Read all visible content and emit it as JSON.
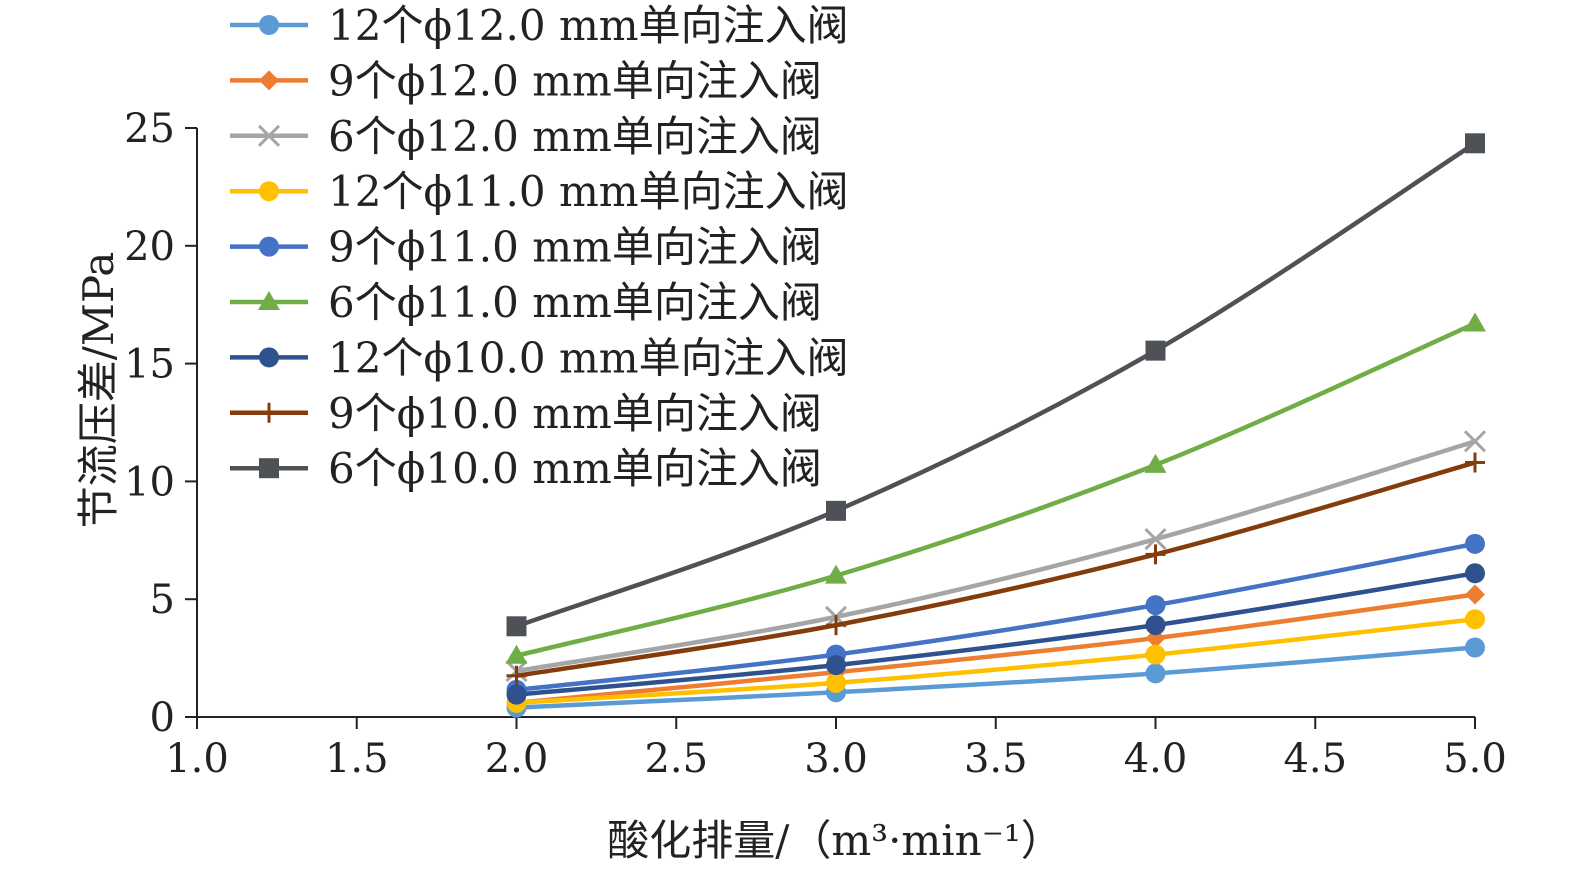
{
  "chart_data": {
    "type": "line",
    "xlabel": "酸化排量/（m³·min⁻¹）",
    "ylabel": "节流压差/MPa",
    "xlim": [
      1.0,
      5.0
    ],
    "ylim": [
      0,
      25
    ],
    "x_ticks": [
      "1.0",
      "1.5",
      "2.0",
      "2.5",
      "3.0",
      "3.5",
      "4.0",
      "4.5",
      "5.0"
    ],
    "y_ticks": [
      "0",
      "5",
      "10",
      "15",
      "20",
      "25"
    ],
    "grid": false,
    "legend_position": "top-left",
    "x": [
      2.0,
      3.0,
      4.0,
      5.0
    ],
    "series": [
      {
        "name": "12个ϕ12.0 mm单向注入阀",
        "color": "#5b9bd5",
        "marker": "circle",
        "values": [
          0.4,
          1.05,
          1.85,
          2.95
        ]
      },
      {
        "name": "9个ϕ12.0 mm单向注入阀",
        "color": "#ed7d31",
        "marker": "diamond",
        "values": [
          0.6,
          1.9,
          3.35,
          5.2
        ]
      },
      {
        "name": "6个ϕ12.0 mm单向注入阀",
        "color": "#a5a5a5",
        "marker": "x",
        "values": [
          1.95,
          4.25,
          7.55,
          11.7
        ]
      },
      {
        "name": "12个ϕ11.0 mm单向注入阀",
        "color": "#ffc000",
        "marker": "circle",
        "values": [
          0.6,
          1.45,
          2.65,
          4.15
        ]
      },
      {
        "name": "9个ϕ11.0 mm单向注入阀",
        "color": "#4472c4",
        "marker": "circle",
        "values": [
          1.15,
          2.65,
          4.75,
          7.35
        ]
      },
      {
        "name": "6个ϕ11.0 mm单向注入阀",
        "color": "#70ad47",
        "marker": "triangle",
        "values": [
          2.6,
          6.0,
          10.7,
          16.7
        ]
      },
      {
        "name": "12个ϕ10.0 mm单向注入阀",
        "color": "#2f528f",
        "marker": "circle",
        "values": [
          0.95,
          2.2,
          3.9,
          6.1
        ]
      },
      {
        "name": "9个ϕ10.0 mm单向注入阀",
        "color": "#843c0c",
        "marker": "plus",
        "values": [
          1.75,
          3.9,
          6.9,
          10.8
        ]
      },
      {
        "name": "6个ϕ10.0 mm单向注入阀",
        "color": "#4e5155",
        "marker": "square",
        "values": [
          3.85,
          8.75,
          15.55,
          24.35
        ]
      }
    ]
  }
}
